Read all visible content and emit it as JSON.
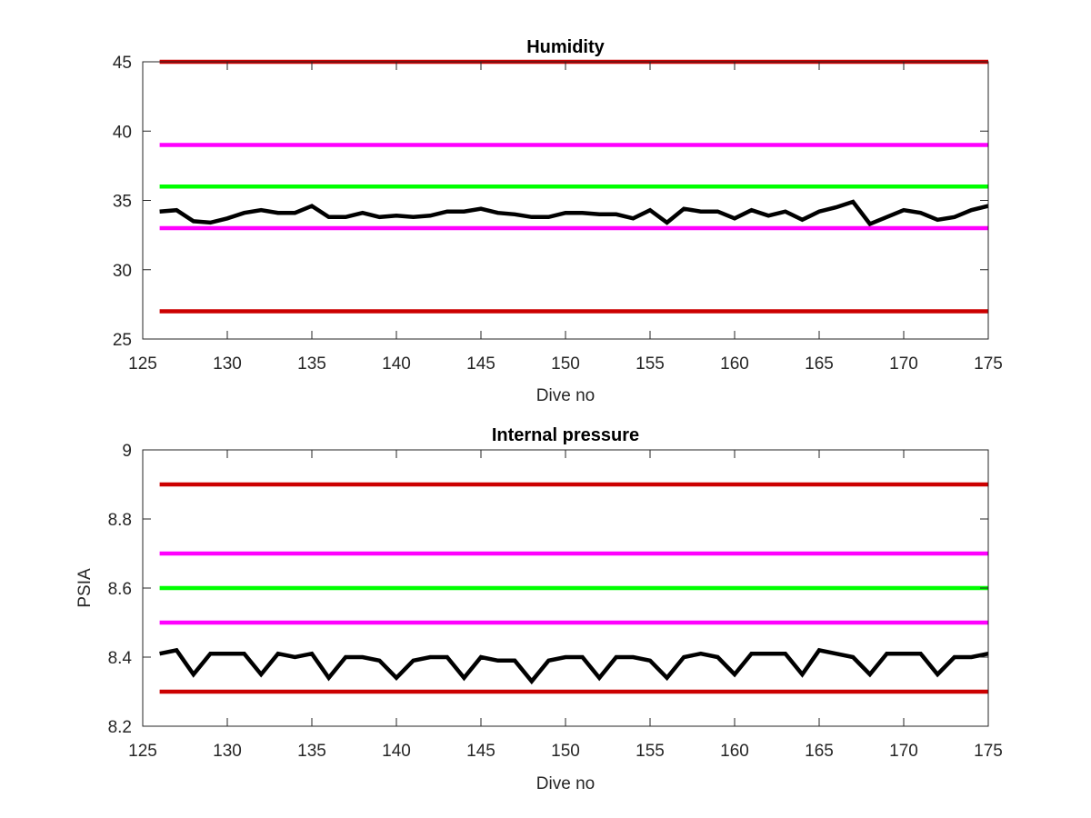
{
  "chart_data": [
    {
      "type": "line",
      "title": "Humidity",
      "xlabel": "Dive no",
      "ylabel": "",
      "xlim": [
        125,
        175
      ],
      "ylim": [
        25,
        45
      ],
      "xticks": [
        125,
        130,
        135,
        140,
        145,
        150,
        155,
        160,
        165,
        170,
        175
      ],
      "yticks": [
        25,
        30,
        35,
        40,
        45
      ],
      "grid": false,
      "reference_lines": [
        {
          "y": 45,
          "color": "#cc0000"
        },
        {
          "y": 39,
          "color": "#ff00ff"
        },
        {
          "y": 36,
          "color": "#00ff00"
        },
        {
          "y": 33,
          "color": "#ff00ff"
        },
        {
          "y": 27,
          "color": "#cc0000"
        }
      ],
      "series": [
        {
          "color": "#000000",
          "x": [
            126,
            127,
            128,
            129,
            130,
            131,
            132,
            133,
            134,
            135,
            136,
            137,
            138,
            139,
            140,
            141,
            142,
            143,
            144,
            145,
            146,
            147,
            148,
            149,
            150,
            151,
            152,
            153,
            154,
            155,
            156,
            157,
            158,
            159,
            160,
            161,
            162,
            163,
            164,
            165,
            166,
            167,
            168,
            169,
            170,
            171,
            172,
            173,
            174,
            175
          ],
          "y": [
            34.2,
            34.3,
            33.5,
            33.4,
            33.7,
            34.1,
            34.3,
            34.1,
            34.1,
            34.6,
            33.8,
            33.8,
            34.1,
            33.8,
            33.9,
            33.8,
            33.9,
            34.2,
            34.2,
            34.4,
            34.1,
            34.0,
            33.8,
            33.8,
            34.1,
            34.1,
            34.0,
            34.0,
            33.7,
            34.3,
            33.4,
            34.4,
            34.2,
            34.2,
            33.7,
            34.3,
            33.9,
            34.2,
            33.6,
            34.2,
            34.5,
            34.9,
            33.3,
            33.8,
            34.3,
            34.1,
            33.6,
            33.8,
            34.3,
            34.6
          ]
        }
      ]
    },
    {
      "type": "line",
      "title": "Internal pressure",
      "xlabel": "Dive no",
      "ylabel": "PSIA",
      "xlim": [
        125,
        175
      ],
      "ylim": [
        8.2,
        9
      ],
      "xticks": [
        125,
        130,
        135,
        140,
        145,
        150,
        155,
        160,
        165,
        170,
        175
      ],
      "yticks": [
        8.2,
        8.4,
        8.6,
        8.8,
        9
      ],
      "grid": false,
      "reference_lines": [
        {
          "y": 8.9,
          "color": "#cc0000"
        },
        {
          "y": 8.7,
          "color": "#ff00ff"
        },
        {
          "y": 8.6,
          "color": "#00ff00"
        },
        {
          "y": 8.5,
          "color": "#ff00ff"
        },
        {
          "y": 8.3,
          "color": "#cc0000"
        }
      ],
      "series": [
        {
          "color": "#000000",
          "x": [
            126,
            127,
            128,
            129,
            130,
            131,
            132,
            133,
            134,
            135,
            136,
            137,
            138,
            139,
            140,
            141,
            142,
            143,
            144,
            145,
            146,
            147,
            148,
            149,
            150,
            151,
            152,
            153,
            154,
            155,
            156,
            157,
            158,
            159,
            160,
            161,
            162,
            163,
            164,
            165,
            166,
            167,
            168,
            169,
            170,
            171,
            172,
            173,
            174,
            175
          ],
          "y": [
            8.41,
            8.42,
            8.35,
            8.41,
            8.41,
            8.41,
            8.35,
            8.41,
            8.4,
            8.41,
            8.34,
            8.4,
            8.4,
            8.39,
            8.34,
            8.39,
            8.4,
            8.4,
            8.34,
            8.4,
            8.39,
            8.39,
            8.33,
            8.39,
            8.4,
            8.4,
            8.34,
            8.4,
            8.4,
            8.39,
            8.34,
            8.4,
            8.41,
            8.4,
            8.35,
            8.41,
            8.41,
            8.41,
            8.35,
            8.42,
            8.41,
            8.4,
            8.35,
            8.41,
            8.41,
            8.41,
            8.35,
            8.4,
            8.4,
            8.41
          ]
        }
      ]
    }
  ]
}
